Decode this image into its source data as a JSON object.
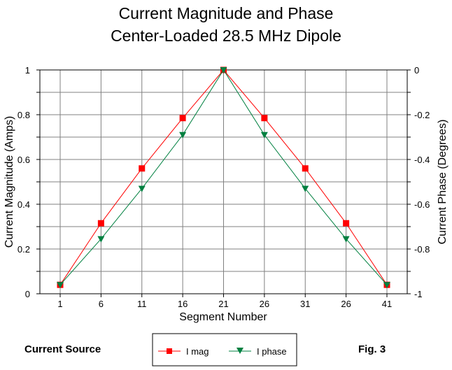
{
  "chart_data": {
    "type": "line",
    "title": "Current Magnitude and Phase",
    "subtitle": "Center-Loaded 28.5 MHz Dipole",
    "xlabel": "Segment Number",
    "ylabel": "Current Magnitude (Amps)",
    "y2label": "Current Phase (Degrees)",
    "categories": [
      "1",
      "6",
      "11",
      "16",
      "21",
      "26",
      "31",
      "26",
      "41"
    ],
    "ylim": [
      0,
      1
    ],
    "y2lim": [
      -1,
      0
    ],
    "yticks": [
      "0",
      "0.2",
      "0.4",
      "0.6",
      "0.8",
      "1"
    ],
    "y2ticks": [
      "-1",
      "-0.8",
      "-0.6",
      "-0.4",
      "-0.2",
      "0"
    ],
    "grid": true,
    "series": [
      {
        "name": "I mag",
        "axis": "left",
        "color": "#ff0000",
        "marker": "square",
        "values": [
          0.04,
          0.315,
          0.56,
          0.785,
          1.0,
          0.785,
          0.56,
          0.315,
          0.04
        ]
      },
      {
        "name": "I phase",
        "axis": "right",
        "color": "#008040",
        "marker": "triangle-down",
        "values": [
          -0.96,
          -0.755,
          -0.53,
          -0.29,
          0.0,
          -0.29,
          -0.53,
          -0.755,
          -0.96
        ]
      }
    ],
    "legend_position": "bottom-center"
  },
  "footer": {
    "left_label": "Current Source",
    "right_label": "Fig. 3"
  },
  "colors": {
    "grid": "#808080",
    "axis": "#000000",
    "background": "#ffffff"
  }
}
